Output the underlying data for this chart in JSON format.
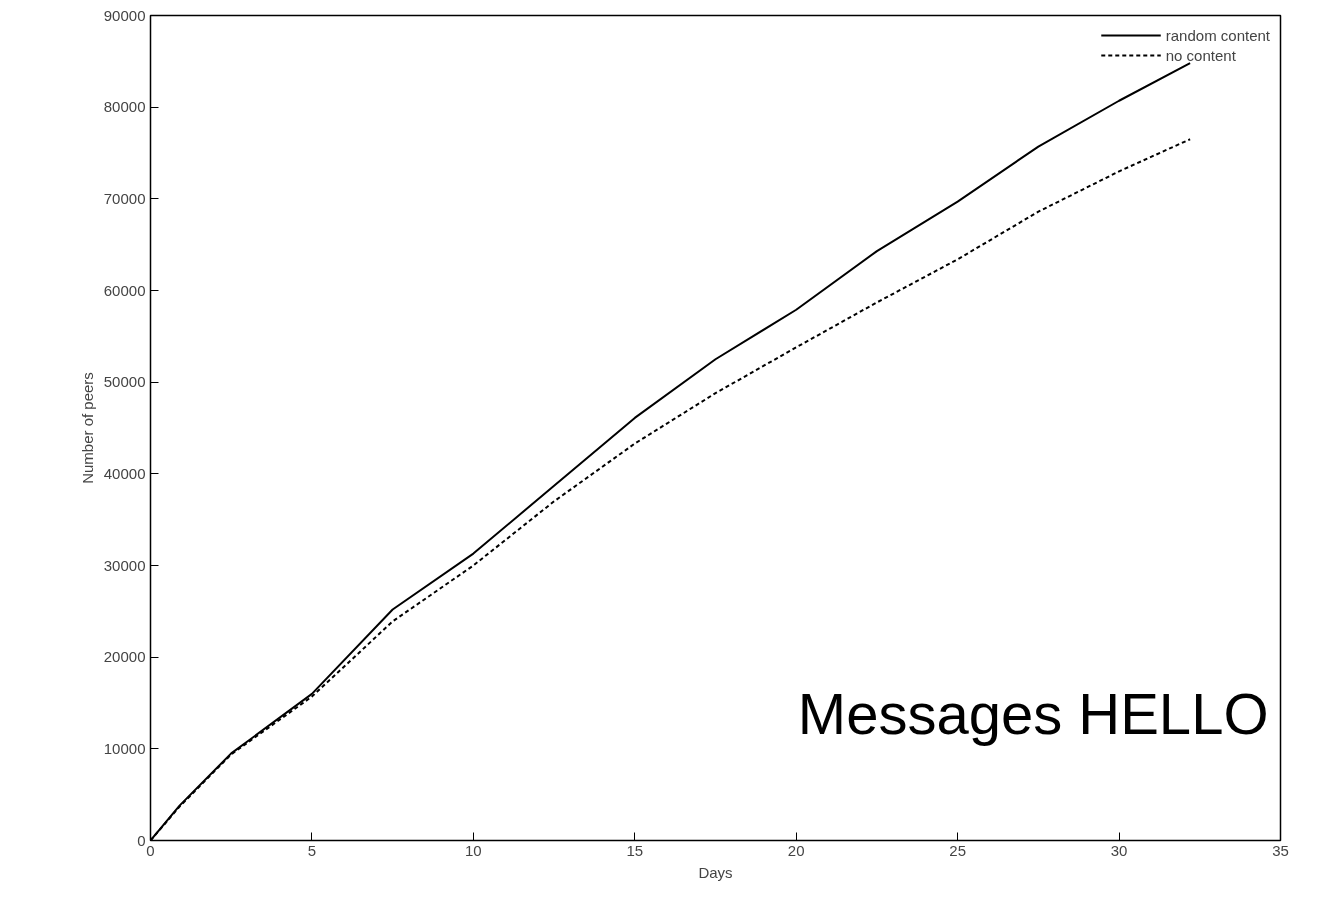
{
  "chart_data": {
    "type": "line",
    "xlabel": "Days",
    "ylabel": "Number of peers",
    "xlim": [
      0,
      35
    ],
    "ylim": [
      0,
      90000
    ],
    "xticks": [
      0,
      5,
      10,
      15,
      20,
      25,
      30,
      35
    ],
    "yticks": [
      0,
      10000,
      20000,
      30000,
      40000,
      50000,
      60000,
      70000,
      80000,
      90000
    ],
    "grid": false,
    "legend": "top right",
    "series": [
      {
        "name": "random content",
        "color": "#000000",
        "line_style": "solid",
        "x": [
          0,
          0.9,
          2.5,
          5,
          7.5,
          10,
          12.5,
          15,
          17.5,
          20,
          22.5,
          25,
          27.5,
          30,
          32.2
        ],
        "values": [
          0,
          3800,
          9500,
          16000,
          25200,
          31300,
          38700,
          46100,
          52500,
          57900,
          64300,
          69700,
          75700,
          80700,
          84800
        ]
      },
      {
        "name": "no content",
        "color": "#000000",
        "line_style": "dashed",
        "x": [
          0,
          0.9,
          2.5,
          5,
          7.5,
          10,
          12.5,
          15,
          17.5,
          20,
          22.5,
          25,
          27.5,
          30,
          32.2
        ],
        "values": [
          0,
          3700,
          9400,
          15700,
          23900,
          30000,
          37000,
          43300,
          48800,
          53800,
          58700,
          63400,
          68600,
          73000,
          76500
        ]
      }
    ],
    "annotations": [
      "Messages HELLO"
    ]
  }
}
